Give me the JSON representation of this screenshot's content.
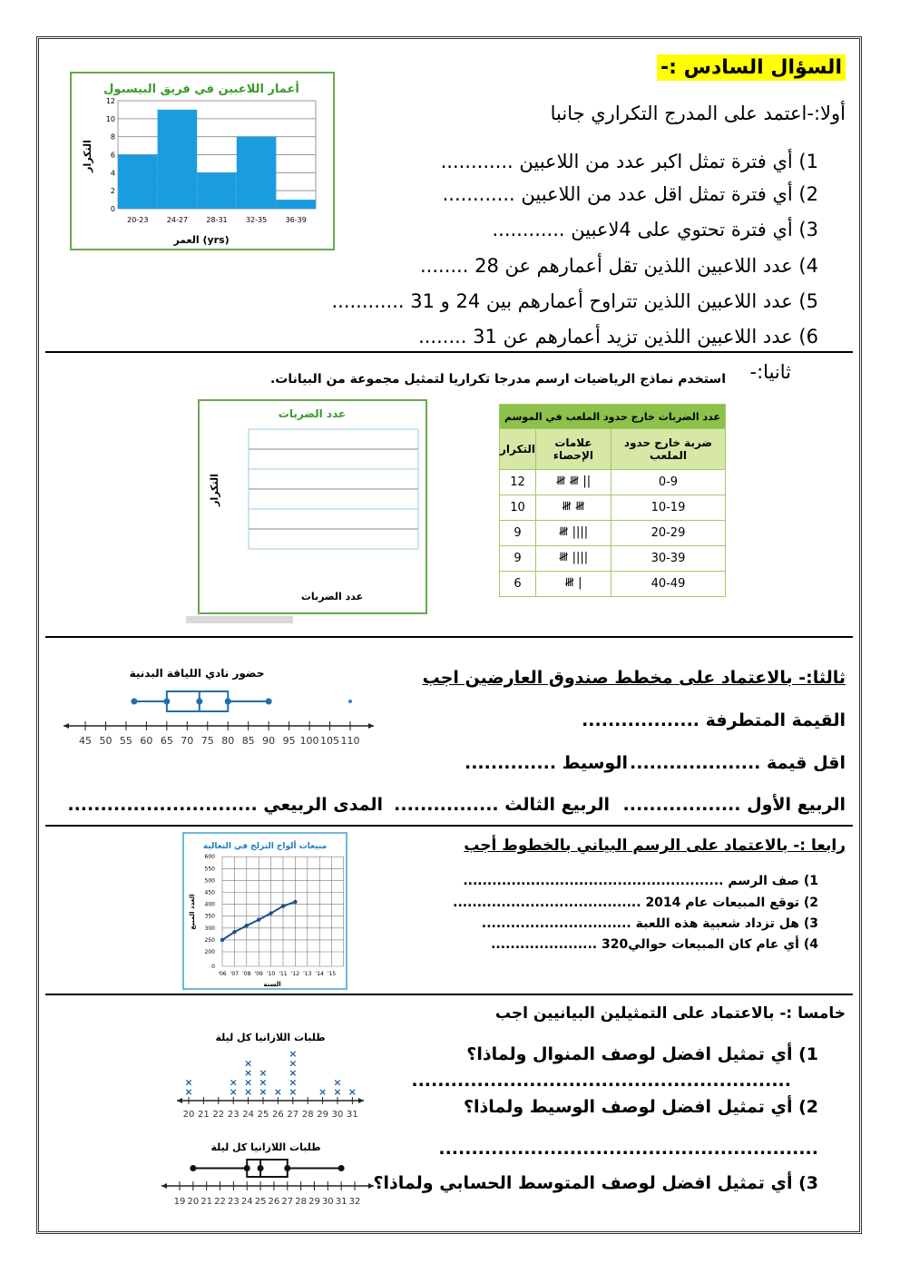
{
  "header": {
    "title": "السؤال السادس :-"
  },
  "part1": {
    "intro": "أولا:-اعتمد على  المدرج التكراري جانبا",
    "questions": [
      "1) أي فترة تمثل اكبر عدد من اللاعبين ............",
      "2) أي فترة تمثل اقل عدد من اللاعبين ............",
      "3) أي فترة تحتوي على 4لاعبين ............",
      "4) عدد اللاعبين اللذين تقل أعمارهم عن 28 ........",
      "5) عدد اللاعبين اللذين تتراوح أعمارهم بين 24 و 31 ............",
      "6) عدد اللاعبين اللذين تزيد أعمارهم عن 31 ........"
    ]
  },
  "part2": {
    "label": "ثانيا:-",
    "instruction": "استخدم نماذج الرياضيات  ارسم مدرجا تكراريا لتمثيل مجموعة من البيانات.",
    "table": {
      "caption": "عدد الضربات خارج حدود الملعب في الموسم",
      "headers": [
        "ضربة خارج حدود الملعب",
        "علامات الإحصاء",
        "التكرار"
      ],
      "rows": [
        [
          "0-9",
          "|| 𝍸 𝍸",
          "12"
        ],
        [
          "10-19",
          "𝍸 𝍸",
          "10"
        ],
        [
          "20-29",
          "|||| 𝍸",
          "9"
        ],
        [
          "30-39",
          "|||| 𝍸",
          "9"
        ],
        [
          "40-49",
          "| 𝍸",
          "6"
        ]
      ]
    },
    "empty_chart": {
      "title": "عدد الضربات",
      "ylabel": "التكرار",
      "xlabel": "عدد الضربات"
    }
  },
  "part3": {
    "heading": "ثالثا:- بالاعتماد  على مخطط صندوق العارضين اجب",
    "line1": "القيمة المتطرفة ..................",
    "line2a": "اقل قيمة ....................",
    "line2b": "الوسيط ..............",
    "line3a": "الربيع الأول ..................",
    "line3b": "الربيع الثالث ................",
    "line3c": "المدى الربيعي ............................."
  },
  "part4": {
    "heading": "رابعا :- بالاعتماد على الرسم البياني بالخطوط أجب",
    "items": [
      "1)   صف الرسم ......................................................",
      "2)   توقع المبيعات عام 2014 .......................................",
      "3)   هل تزداد شعبية هذه اللعبة ...............................",
      "4)   أي عام كان المبيعات حوالي320 ......................"
    ]
  },
  "part5": {
    "heading": "خامسا :-  بالاعتماد على التمثيلين البيانيين اجب",
    "q1": "1)  أي تمثيل افضل لوصف المنوال ولماذا؟",
    "q1_line": "..........................................................",
    "q2": "2)  أي تمثيل افضل لوصف الوسيط ولماذا؟",
    "q2_line": "..........................................................",
    "q3": "3)  أي تمثيل افضل لوصف المتوسط الحسابي ولماذا؟"
  },
  "colors": {
    "bar": "#1a9de0",
    "green_title": "#3c9a2b",
    "box": "#1f6fae",
    "line_chart": "#1d4f91",
    "lineplot_x": "#1c5fa5",
    "highlight": "#ffff00"
  },
  "chart_data": [
    {
      "type": "bar",
      "title": "أعمار اللاعبين في فريق البيسبول",
      "xlabel": "العمر (yrs)",
      "ylabel": "التكرار",
      "categories": [
        "20-23",
        "24-27",
        "28-31",
        "32-35",
        "36-39"
      ],
      "values": [
        6,
        11,
        4,
        8,
        1
      ],
      "ylim": [
        0,
        12
      ],
      "yticks": [
        0,
        2,
        4,
        6,
        8,
        10,
        12
      ],
      "grid": true
    },
    {
      "type": "boxplot",
      "title": "حضور نادي اللياقة البدنية",
      "min": 57,
      "q1": 65,
      "median": 73,
      "q3": 80,
      "max": 90,
      "outliers": [
        110
      ],
      "ticks": [
        45,
        50,
        55,
        60,
        65,
        70,
        75,
        80,
        85,
        90,
        95,
        100,
        105,
        110
      ]
    },
    {
      "type": "line",
      "title": "مبيعات ألواح التزلج في النعالية",
      "xlabel": "السنة",
      "ylabel": "العدد المبيع",
      "x": [
        "'06",
        "'07",
        "'08",
        "'09",
        "'10",
        "'11",
        "'12"
      ],
      "y": [
        250,
        283,
        310,
        335,
        362,
        392,
        410
      ],
      "xticks": [
        "'06",
        "'07",
        "'08",
        "'09",
        "'10",
        "'11",
        "'12",
        "'13",
        "'14",
        "'15"
      ],
      "yticks": [
        0,
        200,
        250,
        300,
        350,
        400,
        450,
        500,
        550,
        600
      ],
      "grid": true
    },
    {
      "type": "dotplot",
      "title": "طلبات اللازانيا كل ليلة",
      "ticks": [
        20,
        21,
        22,
        23,
        24,
        25,
        26,
        27,
        28,
        29,
        30,
        31
      ],
      "counts": {
        "20": 2,
        "23": 2,
        "24": 4,
        "25": 3,
        "26": 1,
        "27": 5,
        "29": 1,
        "30": 2,
        "31": 1
      }
    },
    {
      "type": "boxplot",
      "title": "طلبات اللازانيا كل ليلة",
      "min": 20,
      "q1": 24,
      "median": 25,
      "q3": 27,
      "max": 31,
      "outliers": [],
      "ticks": [
        19,
        20,
        21,
        22,
        23,
        24,
        25,
        26,
        27,
        28,
        29,
        30,
        31,
        32
      ]
    }
  ]
}
